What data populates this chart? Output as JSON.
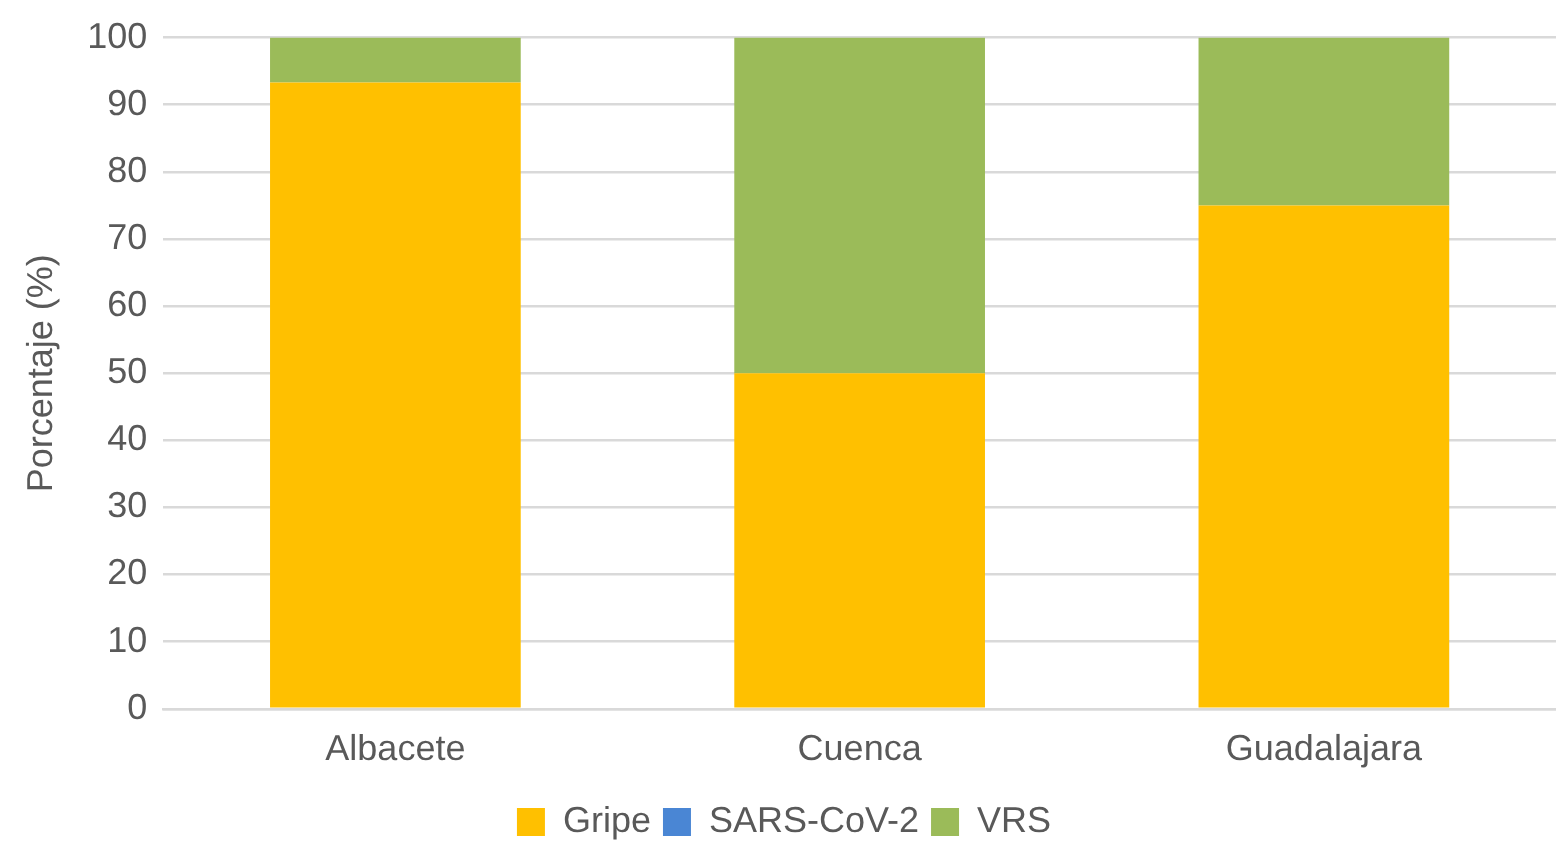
{
  "chart_data": {
    "type": "bar",
    "stacked": true,
    "ylabel": "Porcentaje (%)",
    "categories": [
      "Albacete",
      "Cuenca",
      "Guadalajara"
    ],
    "series": [
      {
        "name": "Gripe",
        "color": "#ffc000",
        "values": [
          93.3,
          50,
          75
        ]
      },
      {
        "name": "SARS-CoV-2",
        "color": "#4a86d4",
        "values": [
          0,
          0,
          0
        ]
      },
      {
        "name": "VRS",
        "color": "#9bbb59",
        "values": [
          6.7,
          50,
          25
        ]
      }
    ],
    "ylim": [
      0,
      100
    ],
    "yticks": [
      0,
      10,
      20,
      30,
      40,
      50,
      60,
      70,
      80,
      90,
      100
    ],
    "grid": "y",
    "legend": "bottom"
  }
}
